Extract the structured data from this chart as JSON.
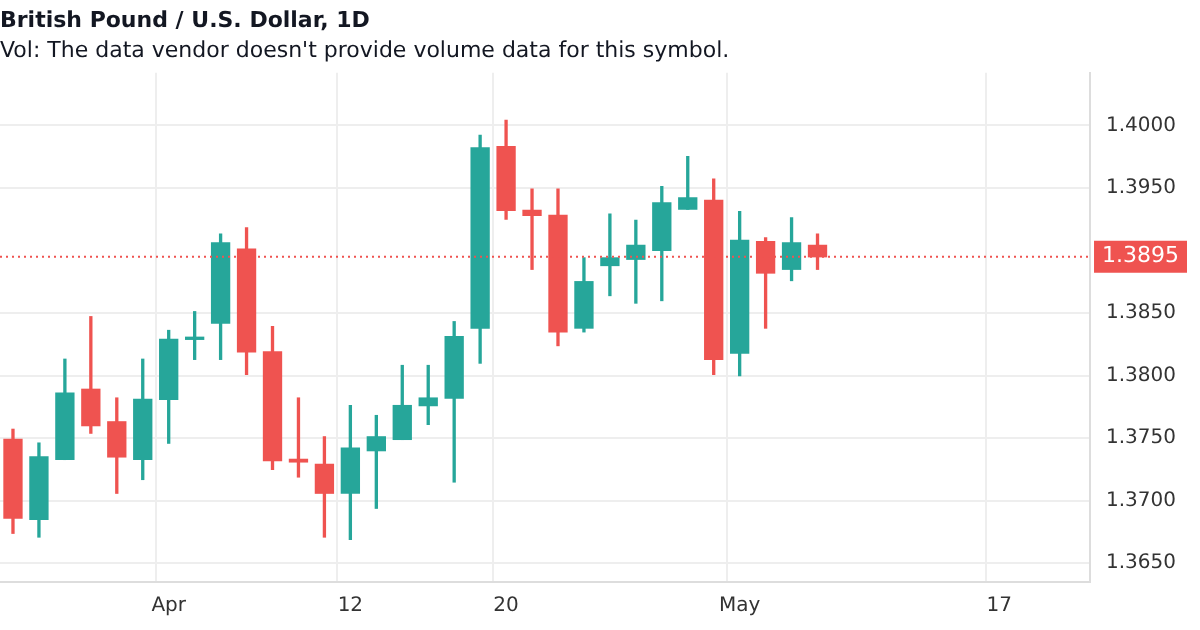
{
  "chart_data": {
    "type": "candlestick",
    "title": "British Pound / U.S. Dollar, 1D",
    "annotations": [
      "Vol: The data vendor doesn't provide volume data for this symbol."
    ],
    "categories": [
      null,
      null,
      null,
      null,
      null,
      null,
      "Apr",
      null,
      null,
      null,
      null,
      null,
      null,
      "12",
      null,
      null,
      null,
      null,
      null,
      "20",
      null,
      null,
      null,
      null,
      null,
      null,
      null,
      null,
      "May",
      null,
      null,
      null,
      null,
      null,
      null,
      null,
      null,
      null,
      "17",
      null,
      null,
      null
    ],
    "ohlc": [
      [
        1.3749,
        1.3757,
        1.3674,
        1.3686
      ],
      [
        1.3685,
        1.3746,
        1.3671,
        1.3735
      ],
      [
        1.3733,
        1.3813,
        1.3733,
        1.3786
      ],
      [
        1.3789,
        1.3847,
        1.3754,
        1.376
      ],
      [
        1.3763,
        1.3782,
        1.3706,
        1.3735
      ],
      [
        1.3733,
        1.3813,
        1.3717,
        1.3781
      ],
      [
        1.3781,
        1.3836,
        1.3746,
        1.3829
      ],
      [
        1.3829,
        1.3851,
        1.3813,
        1.3829
      ],
      [
        1.3842,
        1.3913,
        1.3813,
        1.3906
      ],
      [
        1.3901,
        1.3918,
        1.3801,
        1.3819
      ],
      [
        1.3819,
        1.3839,
        1.3725,
        1.3732
      ],
      [
        1.3733,
        1.3782,
        1.3719,
        1.3731
      ],
      [
        1.3729,
        1.3751,
        1.3671,
        1.3706
      ],
      [
        1.3706,
        1.3776,
        1.3669,
        1.3742
      ],
      [
        1.374,
        1.3768,
        1.3694,
        1.3751
      ],
      [
        1.3749,
        1.3808,
        1.3749,
        1.3776
      ],
      [
        1.3776,
        1.3808,
        1.3761,
        1.3782
      ],
      [
        1.3782,
        1.3843,
        1.3715,
        1.3831
      ],
      [
        1.3838,
        1.3992,
        1.381,
        1.3982
      ],
      [
        1.3983,
        1.4004,
        1.3925,
        1.3932
      ],
      [
        1.3932,
        1.3949,
        1.3885,
        1.3928
      ],
      [
        1.3928,
        1.3949,
        1.3824,
        1.3835
      ],
      [
        1.3838,
        1.3894,
        1.3835,
        1.3875
      ],
      [
        1.3888,
        1.3929,
        1.3864,
        1.3894
      ],
      [
        1.3893,
        1.3924,
        1.3858,
        1.3904
      ],
      [
        1.39,
        1.3951,
        1.386,
        1.3938
      ],
      [
        1.3933,
        1.3975,
        1.3933,
        1.3942
      ],
      [
        1.394,
        1.3957,
        1.3801,
        1.3813
      ],
      [
        1.3818,
        1.3931,
        1.38,
        1.3908
      ],
      [
        1.3907,
        1.391,
        1.3838,
        1.3882
      ],
      [
        1.3885,
        1.3926,
        1.3876,
        1.3906
      ],
      [
        1.3904,
        1.3913,
        1.3885,
        1.3895
      ],
      null,
      null,
      null,
      null,
      null,
      null,
      null,
      null,
      null,
      null
    ],
    "colors": [
      "#ef5350",
      "#26a69a",
      "#26a69a",
      "#ef5350",
      "#ef5350",
      "#26a69a",
      "#26a69a",
      "#26a69a",
      "#26a69a",
      "#ef5350",
      "#ef5350",
      "#ef5350",
      "#ef5350",
      "#26a69a",
      "#26a69a",
      "#26a69a",
      "#26a69a",
      "#26a69a",
      "#26a69a",
      "#ef5350",
      "#ef5350",
      "#ef5350",
      "#26a69a",
      "#26a69a",
      "#26a69a",
      "#26a69a",
      "#26a69a",
      "#ef5350",
      "#26a69a",
      "#ef5350",
      "#26a69a",
      "#ef5350",
      null,
      null,
      null,
      null,
      null,
      null,
      null,
      null,
      null,
      null
    ],
    "ylim": [
      1.3635,
      1.4042
    ],
    "yticks": [
      {
        "value": 1.365,
        "label": "1.3650"
      },
      {
        "value": 1.37,
        "label": "1.3700"
      },
      {
        "value": 1.375,
        "label": "1.3750"
      },
      {
        "value": 1.38,
        "label": "1.3800"
      },
      {
        "value": 1.385,
        "label": "1.3850"
      },
      {
        "value": 1.395,
        "label": "1.3950"
      },
      {
        "value": 1.4,
        "label": "1.4000"
      }
    ],
    "ref_lines": [
      {
        "axis": "y",
        "value": 1.3895,
        "label": "1.3895",
        "color": "#ef5350",
        "line_style": "dotted"
      }
    ],
    "grid": true,
    "legend": false
  }
}
